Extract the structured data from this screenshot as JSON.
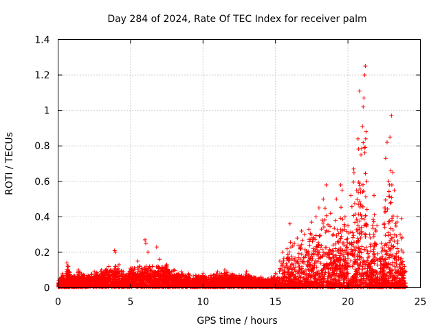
{
  "chart_data": {
    "type": "scatter",
    "title": "Day 284 of 2024, Rate Of TEC Index for receiver palm",
    "xlabel": "GPS time / hours",
    "ylabel": "ROTI / TECUs",
    "xlim": [
      0,
      25
    ],
    "ylim": [
      0,
      1.4
    ],
    "xticks": [
      "0",
      "5",
      "10",
      "15",
      "20",
      "25"
    ],
    "yticks": [
      "0",
      "0.2",
      "0.4",
      "0.6",
      "0.8",
      "1",
      "1.2",
      "1.4"
    ],
    "grid": true,
    "marker": "+",
    "series": [
      {
        "name": "ROTI",
        "color": "#ff0000",
        "description_of_density": "dense band 0-24 h",
        "points": [
          [
            0.1,
            0.05
          ],
          [
            0.3,
            0.08
          ],
          [
            0.5,
            0.04
          ],
          [
            0.6,
            0.14
          ],
          [
            0.7,
            0.12
          ],
          [
            1.0,
            0.06
          ],
          [
            1.4,
            0.1
          ],
          [
            2.0,
            0.07
          ],
          [
            2.5,
            0.09
          ],
          [
            3.0,
            0.1
          ],
          [
            3.5,
            0.12
          ],
          [
            3.9,
            0.21
          ],
          [
            3.95,
            0.2
          ],
          [
            4.2,
            0.13
          ],
          [
            4.5,
            0.09
          ],
          [
            5.0,
            0.11
          ],
          [
            5.5,
            0.15
          ],
          [
            6.0,
            0.27
          ],
          [
            6.05,
            0.25
          ],
          [
            6.2,
            0.2
          ],
          [
            6.5,
            0.12
          ],
          [
            6.8,
            0.23
          ],
          [
            7.0,
            0.16
          ],
          [
            7.5,
            0.13
          ],
          [
            8.0,
            0.1
          ],
          [
            8.5,
            0.09
          ],
          [
            9.0,
            0.08
          ],
          [
            9.5,
            0.07
          ],
          [
            10.0,
            0.08
          ],
          [
            10.5,
            0.07
          ],
          [
            11.0,
            0.09
          ],
          [
            11.5,
            0.1
          ],
          [
            12.0,
            0.08
          ],
          [
            12.5,
            0.07
          ],
          [
            13.0,
            0.09
          ],
          [
            13.5,
            0.06
          ],
          [
            14.0,
            0.06
          ],
          [
            14.5,
            0.05
          ],
          [
            15.0,
            0.08
          ],
          [
            15.3,
            0.15
          ],
          [
            15.5,
            0.2
          ],
          [
            15.8,
            0.22
          ],
          [
            16.0,
            0.36
          ],
          [
            16.3,
            0.25
          ],
          [
            16.5,
            0.28
          ],
          [
            16.8,
            0.32
          ],
          [
            17.0,
            0.3
          ],
          [
            17.3,
            0.33
          ],
          [
            17.5,
            0.37
          ],
          [
            17.8,
            0.4
          ],
          [
            18.0,
            0.45
          ],
          [
            18.3,
            0.5
          ],
          [
            18.5,
            0.58
          ],
          [
            18.8,
            0.42
          ],
          [
            19.0,
            0.3
          ],
          [
            19.2,
            0.5
          ],
          [
            19.5,
            0.58
          ],
          [
            19.6,
            0.55
          ],
          [
            19.8,
            0.4
          ],
          [
            20.0,
            0.35
          ],
          [
            20.2,
            0.52
          ],
          [
            20.4,
            0.67
          ],
          [
            20.6,
            0.55
          ],
          [
            20.7,
            0.84
          ],
          [
            20.8,
            1.11
          ],
          [
            20.9,
            0.75
          ],
          [
            21.0,
            0.91
          ],
          [
            21.05,
            1.02
          ],
          [
            21.1,
            1.07
          ],
          [
            21.15,
            1.2
          ],
          [
            21.2,
            1.25
          ],
          [
            21.25,
            0.88
          ],
          [
            21.3,
            0.6
          ],
          [
            21.5,
            0.3
          ],
          [
            21.8,
            0.52
          ],
          [
            22.0,
            0.35
          ],
          [
            22.3,
            0.25
          ],
          [
            22.5,
            0.45
          ],
          [
            22.6,
            0.73
          ],
          [
            22.7,
            0.82
          ],
          [
            22.8,
            0.6
          ],
          [
            22.9,
            0.85
          ],
          [
            23.0,
            0.97
          ],
          [
            23.1,
            0.65
          ],
          [
            23.2,
            0.55
          ],
          [
            23.4,
            0.4
          ],
          [
            23.6,
            0.3
          ],
          [
            23.7,
            0.39
          ],
          [
            23.8,
            0.2
          ],
          [
            23.9,
            0.12
          ]
        ]
      }
    ]
  }
}
